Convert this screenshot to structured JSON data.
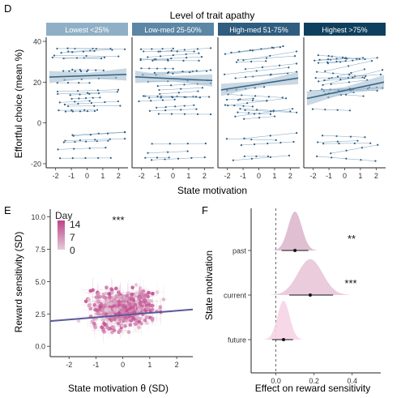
{
  "panels": {
    "D": {
      "letter": "D",
      "title": "Level of trait apathy",
      "facets": [
        {
          "label": "Lowest <25%",
          "color": "#8fafc6",
          "line": [
            [
              -2.4,
              22.5
            ],
            [
              2.5,
              23.8
            ]
          ],
          "band": 3.0
        },
        {
          "label": "Low-med 25-50%",
          "color": "#5b86a6",
          "line": [
            [
              -2.4,
              22.6
            ],
            [
              2.5,
              20.8
            ]
          ],
          "band": 3.0
        },
        {
          "label": "High-med 51-75%",
          "color": "#2f5c7f",
          "line": [
            [
              -2.4,
              16.2
            ],
            [
              2.5,
              22.0
            ]
          ],
          "band": 3.0
        },
        {
          "label": "Highest >75%",
          "color": "#0f3f5e",
          "line": [
            [
              -2.4,
              12.0
            ],
            [
              2.5,
              20.0
            ]
          ],
          "band": 3.5
        }
      ],
      "xlabel": "State motivation",
      "ylabel": "Effortful choice (mean %)",
      "xticks": [
        "-2",
        "-1",
        "0",
        "1",
        "2"
      ],
      "yticks": [
        "40",
        "20",
        "0",
        "-20"
      ],
      "xlim": [
        -2.6,
        2.6
      ],
      "ylim": [
        -22,
        42
      ]
    },
    "E": {
      "letter": "E",
      "legend_title": "Day",
      "legend_labels": [
        "14",
        "7",
        "0"
      ],
      "significance": "***",
      "xlabel": "State motivation θ (SD)",
      "ylabel": "Reward sensitivity (SD)",
      "xticks": [
        "-2",
        "-1",
        "0",
        "1",
        "2"
      ],
      "yticks": [
        "10.0",
        "7.5",
        "5.0",
        "2.5",
        "0.0"
      ],
      "xlim": [
        -2.7,
        2.6
      ],
      "ylim": [
        -0.8,
        10.6
      ],
      "regression_line": [
        [
          -2.7,
          1.95
        ],
        [
          2.6,
          2.85
        ]
      ],
      "line_color": "#5a5a9a",
      "color_low": "#e3cbd8",
      "color_high": "#c0428a"
    },
    "F": {
      "letter": "F",
      "ylabel": "State motivation",
      "xlabel": "Effect on reward sensitivity",
      "xticks": [
        "0.0",
        "0.2",
        "0.4"
      ],
      "xlim": [
        -0.13,
        0.55
      ],
      "fill_colors": [
        "#dcb8cc",
        "#e8c6d8",
        "#f6d4e6"
      ]
    }
  },
  "chart_data": [
    {
      "type": "line",
      "panel": "D",
      "title": "Level of trait apathy",
      "xlabel": "State motivation",
      "ylabel": "Effortful choice (mean %)",
      "facets": [
        "Lowest <25%",
        "Low-med 25-50%",
        "High-med 51-75%",
        "Highest >75%"
      ],
      "xlim": [
        -2.6,
        2.6
      ],
      "ylim": [
        -22,
        42
      ],
      "series": [
        {
          "name": "Lowest <25%",
          "fit_x": [
            -2.4,
            2.5
          ],
          "fit_y": [
            22.5,
            23.8
          ]
        },
        {
          "name": "Low-med 25-50%",
          "fit_x": [
            -2.4,
            2.5
          ],
          "fit_y": [
            22.6,
            20.8
          ]
        },
        {
          "name": "High-med 51-75%",
          "fit_x": [
            -2.4,
            2.5
          ],
          "fit_y": [
            16.2,
            22.0
          ]
        },
        {
          "name": "Highest >75%",
          "fit_x": [
            -2.4,
            2.5
          ],
          "fit_y": [
            12.0,
            20.0
          ]
        }
      ]
    },
    {
      "type": "scatter",
      "panel": "E",
      "xlabel": "State motivation θ (SD)",
      "ylabel": "Reward sensitivity (SD)",
      "xlim": [
        -2.7,
        2.6
      ],
      "ylim": [
        -0.8,
        10.6
      ],
      "legend": {
        "title": "Day",
        "labels": [
          "14",
          "7",
          "0"
        ],
        "placement": "top-left"
      },
      "annotation": "***",
      "regression": {
        "x": [
          -2.7,
          2.6
        ],
        "y": [
          1.95,
          2.85
        ]
      }
    },
    {
      "type": "area",
      "panel": "F",
      "xlabel": "Effect on reward sensitivity",
      "ylabel": "State motivation",
      "categories": [
        "past",
        "current",
        "future"
      ],
      "annotations": [
        "**",
        "***",
        ""
      ],
      "medians": [
        0.1,
        0.18,
        0.04
      ],
      "intervals": [
        [
          0.03,
          0.17
        ],
        [
          0.07,
          0.3
        ],
        [
          -0.02,
          0.09
        ]
      ],
      "sd": [
        0.036,
        0.065,
        0.032
      ],
      "xlim": [
        -0.13,
        0.55
      ],
      "reference_line": 0
    }
  ]
}
